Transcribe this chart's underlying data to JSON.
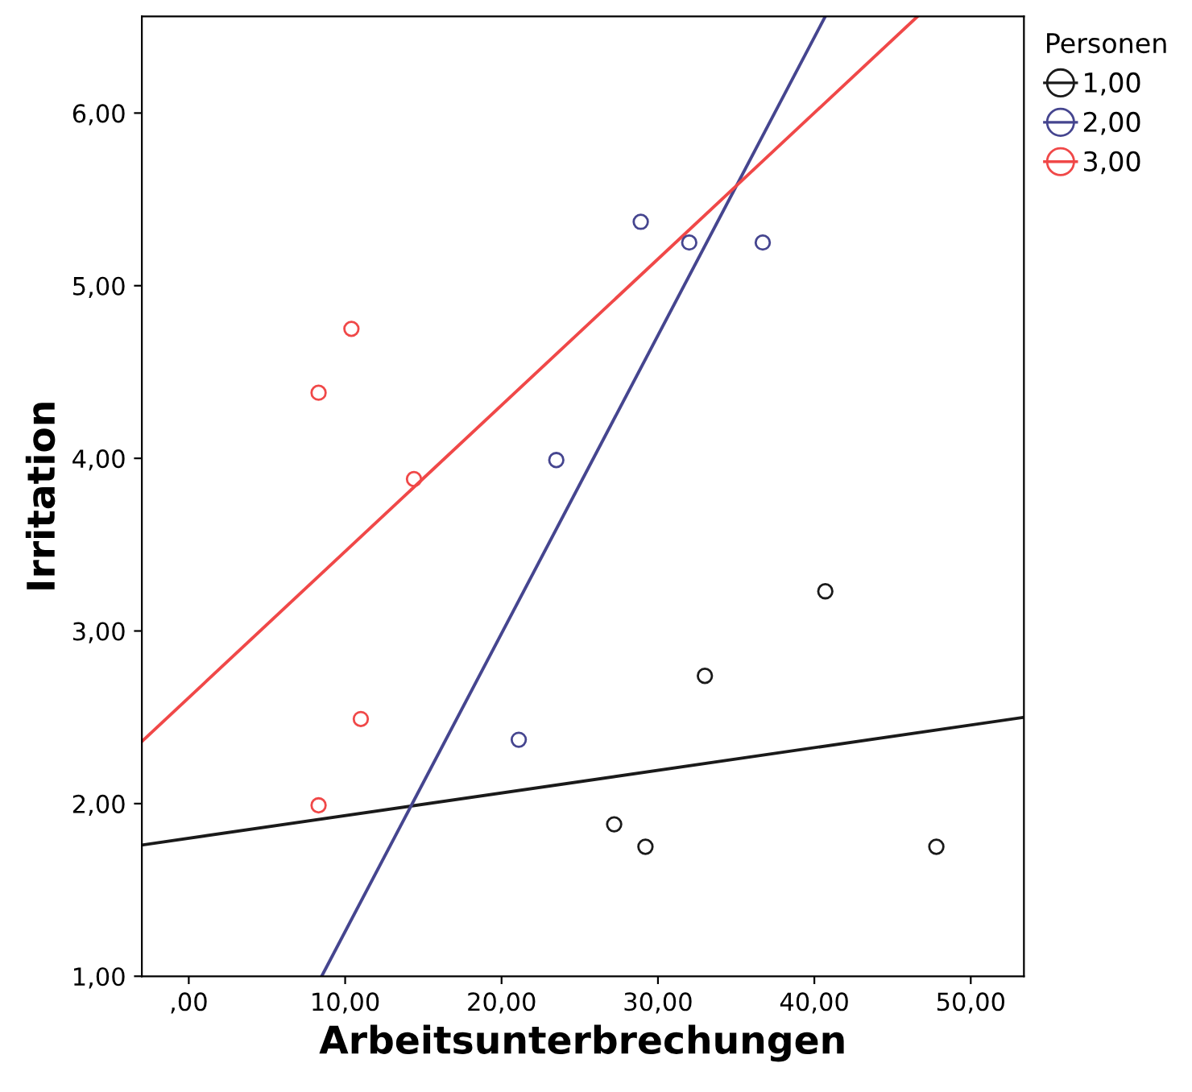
{
  "chart_data": {
    "type": "scatter",
    "xlabel": "Arbeitsunterbrechungen",
    "ylabel": "Irritation",
    "legend_title": "Personen",
    "legend": "right",
    "grid": false,
    "marker": "circle",
    "xlim": [
      -3.0,
      53.4
    ],
    "ylim": [
      1.0,
      6.56
    ],
    "xticks": [
      {
        "value": 0,
        "label": ",00"
      },
      {
        "value": 10,
        "label": "10,00"
      },
      {
        "value": 20,
        "label": "20,00"
      },
      {
        "value": 30,
        "label": "30,00"
      },
      {
        "value": 40,
        "label": "40,00"
      },
      {
        "value": 50,
        "label": "50,00"
      }
    ],
    "yticks": [
      {
        "value": 1,
        "label": "1,00"
      },
      {
        "value": 2,
        "label": "2,00"
      },
      {
        "value": 3,
        "label": "3,00"
      },
      {
        "value": 4,
        "label": "4,00"
      },
      {
        "value": 5,
        "label": "5,00"
      },
      {
        "value": 6,
        "label": "6,00"
      }
    ],
    "series": [
      {
        "name": "1,00",
        "color": "#1a1a1a",
        "x": [
          27.2,
          29.2,
          33.0,
          40.7,
          47.8
        ],
        "values": [
          1.88,
          1.75,
          2.74,
          3.23,
          1.75
        ]
      },
      {
        "name": "2,00",
        "color": "#45458f",
        "x": [
          21.1,
          23.5,
          28.9,
          32.0,
          36.7
        ],
        "values": [
          2.37,
          3.99,
          5.37,
          5.25,
          5.25
        ]
      },
      {
        "name": "3,00",
        "color": "#f04848",
        "x": [
          8.3,
          11.0,
          8.3,
          10.4,
          14.4
        ],
        "values": [
          1.99,
          2.49,
          4.38,
          4.75,
          3.88
        ]
      },
      {
        "type": "line",
        "marker": "none",
        "line_style": "solid",
        "color": "#1a1a1a",
        "x": [
          -3.0,
          53.4
        ],
        "values": [
          1.76,
          2.5
        ]
      },
      {
        "type": "line",
        "marker": "none",
        "line_style": "solid",
        "color": "#45458f",
        "x": [
          8.5,
          40.7
        ],
        "values": [
          1.0,
          6.56
        ]
      },
      {
        "type": "line",
        "marker": "none",
        "line_style": "solid",
        "color": "#f04848",
        "x": [
          -3.0,
          46.6
        ],
        "values": [
          2.36,
          6.56
        ]
      }
    ]
  }
}
